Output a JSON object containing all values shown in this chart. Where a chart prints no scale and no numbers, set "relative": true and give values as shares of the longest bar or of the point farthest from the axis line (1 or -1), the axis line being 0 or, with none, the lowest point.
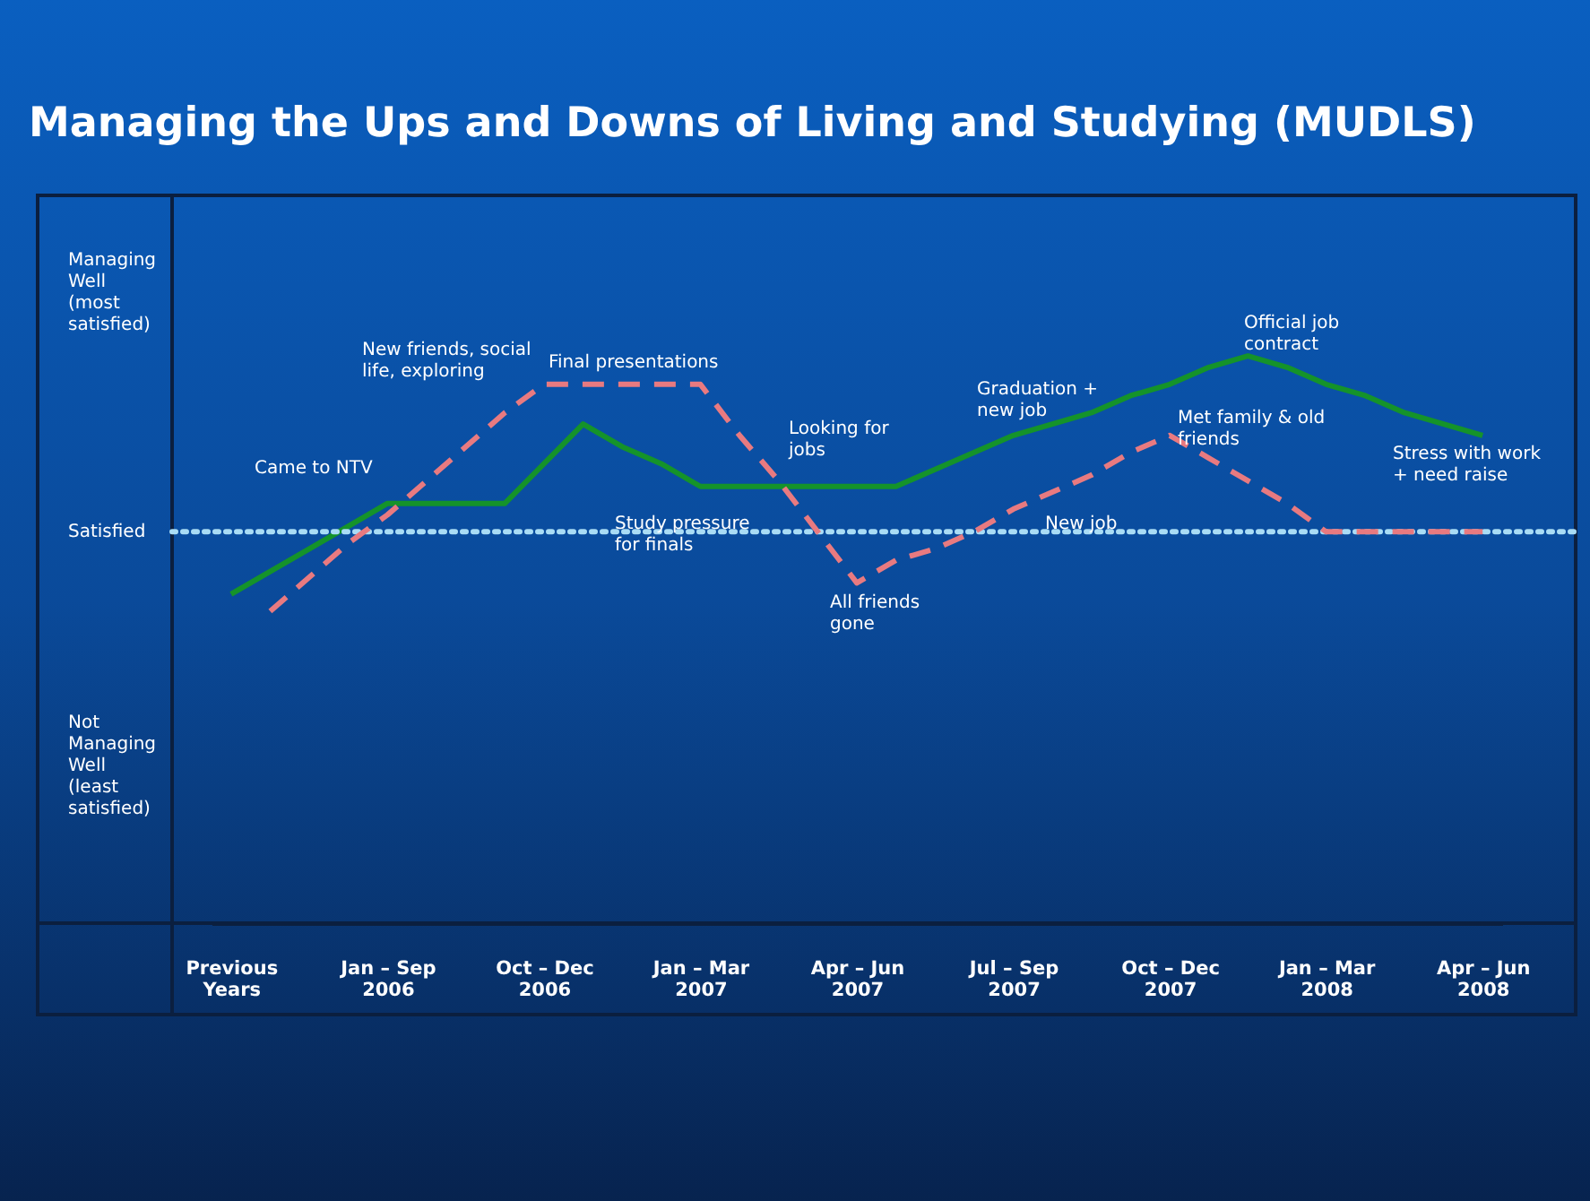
{
  "chart_data": {
    "type": "line",
    "title": "Managing the Ups and Downs of Living and Studying (MUDLS)",
    "relative": true,
    "grid": false,
    "categories": [
      "Previous Years",
      null,
      null,
      null,
      "Jan – Sep 2006",
      null,
      null,
      null,
      "Oct – Dec 2006",
      null,
      null,
      null,
      "Jan – Mar 2007",
      null,
      null,
      null,
      "Apr – Jun 2007",
      null,
      null,
      null,
      "Jul – Sep 2007",
      null,
      null,
      null,
      "Oct – Dec 2007",
      null,
      null,
      null,
      "Jan – Mar 2008",
      null,
      null,
      null,
      "Apr – Jun 2008"
    ],
    "series": [
      {
        "color": "#15932a",
        "line_style": "solid",
        "values": [
          0.58,
          0.62,
          0.66,
          0.7,
          0.74,
          0.74,
          0.74,
          0.74,
          0.81,
          0.88,
          0.84,
          0.81,
          0.77,
          0.77,
          0.77,
          0.77,
          0.77,
          0.77,
          0.8,
          0.83,
          0.86,
          0.88,
          0.9,
          0.93,
          0.95,
          0.98,
          1,
          0.98,
          0.95,
          0.93,
          0.9,
          0.88,
          0.86
        ]
      },
      {
        "color": "#e87a80",
        "line_style": "dashed",
        "values": [
          null,
          0.55,
          0.61,
          0.67,
          0.72,
          0.78,
          0.84,
          0.9,
          0.95,
          0.95,
          0.95,
          0.95,
          0.95,
          0.86,
          0.78,
          0.69,
          0.6,
          0.64,
          0.66,
          0.69,
          0.73,
          0.76,
          0.79,
          0.83,
          0.86,
          0.82,
          0.78,
          0.74,
          0.69,
          0.69,
          0.69,
          0.69,
          0.69
        ]
      }
    ],
    "ref_lines": [
      {
        "axis": "y",
        "value": 0.69,
        "label": "Satisfied",
        "color": "#a9dcf5",
        "line_style": "dotted"
      }
    ],
    "annotations": [
      "Managing Well (most satisfied)",
      "Not Managing Well (least satisfied)",
      "Came to NTV",
      "New friends, social life, exploring",
      "Final presentations",
      "Study pressure for finals",
      "Looking for jobs",
      "All friends gone",
      "Graduation + new job",
      "New job",
      "Met family & old friends",
      "Official job contract",
      "Stress with work + need raise"
    ]
  }
}
